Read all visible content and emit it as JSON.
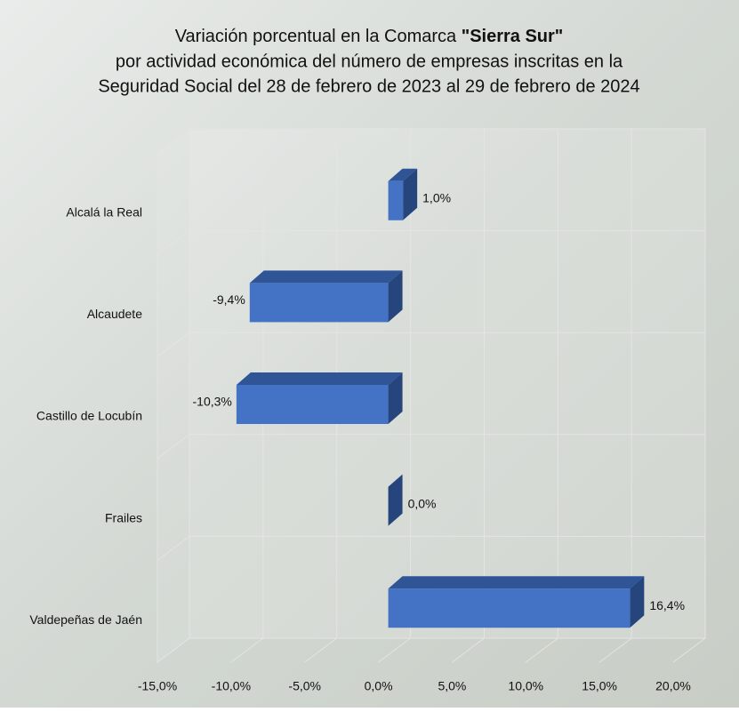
{
  "chart_data": {
    "type": "bar3d-horizontal",
    "title": {
      "line1": "Variación porcentual en la Comarca",
      "line1_bold": "\"Sierra Sur\"",
      "line2": "por actividad económica del número de empresas inscritas en la",
      "line3": "Seguridad Social del 28 de febrero de 2023 al 29 de febrero de 2024"
    },
    "categories": [
      "Alcalá la Real",
      "Alcaudete",
      "Castillo de Locubín",
      "Frailes",
      "Valdepeñas de Jaén"
    ],
    "values": [
      1.0,
      -9.4,
      -10.3,
      0.0,
      16.4
    ],
    "value_labels": [
      "1,0%",
      "-9,4%",
      "-10,3%",
      "0,0%",
      "16,4%"
    ],
    "color": "#4472c4",
    "xlim": [
      -15,
      20
    ],
    "xticks": [
      {
        "value": -15,
        "label": "-15,0%"
      },
      {
        "value": -10,
        "label": "-10,0%"
      },
      {
        "value": -5,
        "label": "-5,0%"
      },
      {
        "value": 0,
        "label": "0,0%"
      },
      {
        "value": 5,
        "label": "5,0%"
      },
      {
        "value": 10,
        "label": "10,0%"
      },
      {
        "value": 15,
        "label": "15,0%"
      },
      {
        "value": 20,
        "label": "20,0%"
      }
    ],
    "grid": true
  }
}
